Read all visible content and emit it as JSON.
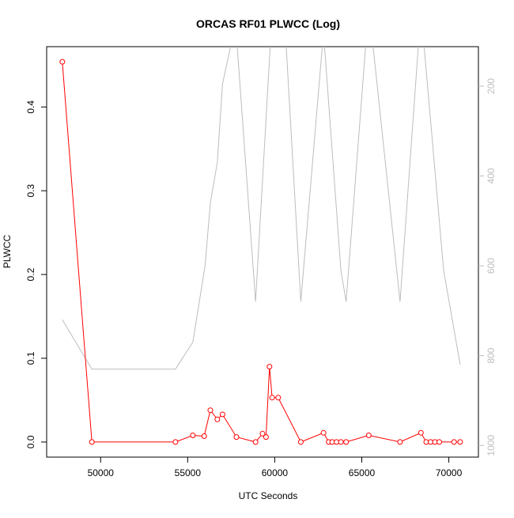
{
  "chart_data": {
    "type": "line",
    "title": "ORCAS RF01 PLWCC (Log)",
    "xlabel": "UTC Seconds",
    "ylabel": "PLWCC",
    "xlim": [
      46900,
      71700
    ],
    "ylim": [
      -0.018,
      0.472
    ],
    "x_ticks": [
      50000,
      55000,
      60000,
      65000,
      70000
    ],
    "y_ticks": [
      0.0,
      0.1,
      0.2,
      0.3,
      0.4
    ],
    "y_tick_labels": [
      "0.0",
      "0.1",
      "0.2",
      "0.3",
      "0.4"
    ],
    "right_axis": {
      "ticks": [
        200,
        400,
        600,
        800,
        1000
      ],
      "ylim": [
        1026,
        112
      ],
      "color": "#bdbdbd"
    },
    "grid": false,
    "series": [
      {
        "color": "#ff0000",
        "marker": "open-circle",
        "x": [
          47800,
          49500,
          54300,
          55300,
          55950,
          56300,
          56700,
          57000,
          57800,
          58900,
          59300,
          59500,
          59700,
          59850,
          60200,
          61500,
          62800,
          63100,
          63300,
          63550,
          63800,
          64100,
          65400,
          67200,
          68400,
          68700,
          68950,
          69200,
          69450,
          70300,
          70650
        ],
        "values": [
          0.454,
          0.0,
          0.0,
          0.008,
          0.007,
          0.038,
          0.027,
          0.033,
          0.006,
          0.0,
          0.01,
          0.006,
          0.09,
          0.053,
          0.053,
          0.0,
          0.011,
          0.0,
          0.0,
          0.0,
          0.0,
          0.0,
          0.008,
          0.0,
          0.011,
          0.0,
          0.0,
          0.0,
          0.0,
          0.0,
          0.0
        ]
      },
      {
        "color": "#bdbdbd",
        "marker": "none",
        "axis": "right",
        "x": [
          47800,
          49500,
          54300,
          55300,
          56000,
          56300,
          56700,
          57000,
          57750,
          58900,
          60200,
          61500,
          62800,
          63800,
          64100,
          65400,
          67200,
          68400,
          69700,
          70650
        ],
        "values": [
          720,
          830,
          830,
          770,
          600,
          460,
          370,
          195,
          60,
          680,
          -200,
          680,
          80,
          610,
          680,
          20,
          680,
          30,
          610,
          820
        ]
      }
    ]
  }
}
